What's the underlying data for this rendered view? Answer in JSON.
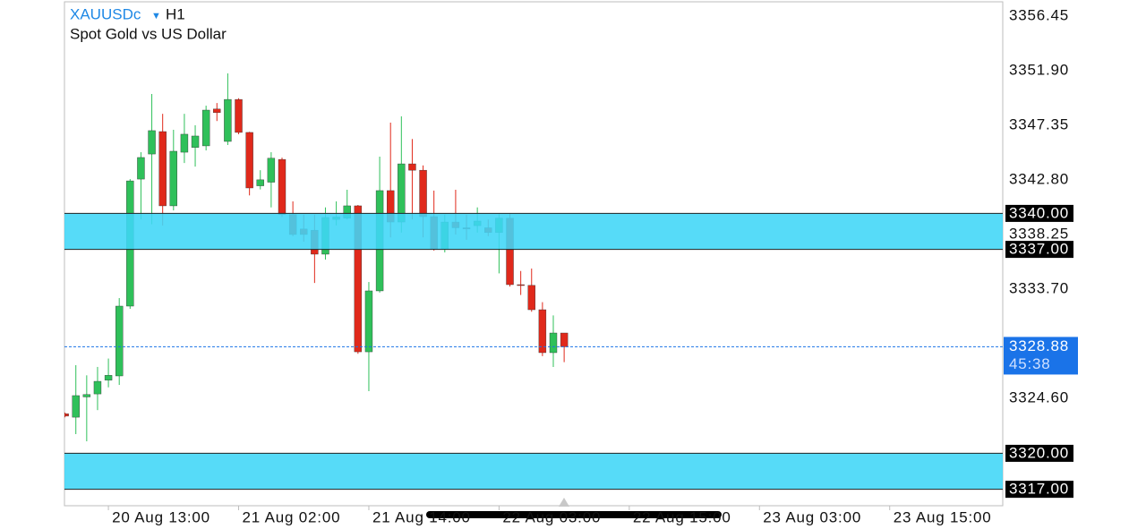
{
  "chart_data": {
    "type": "candlestick",
    "title": "XAUUSDc",
    "timeframe": "H1",
    "subtitle": "Spot Gold vs US Dollar",
    "categories": [
      null,
      null,
      null,
      null,
      "20 Aug 13:00",
      null,
      null,
      null,
      null,
      null,
      null,
      null,
      null,
      null,
      null,
      null,
      "21 Aug 02:00",
      null,
      null,
      null,
      null,
      null,
      null,
      null,
      null,
      null,
      null,
      null,
      "21 Aug 14:00",
      null,
      null,
      null,
      null,
      null,
      null,
      null,
      null,
      null,
      null,
      null,
      "22 Aug 03:00",
      null,
      null,
      null,
      null,
      null,
      null,
      null,
      null,
      null,
      null,
      null,
      "22 Aug 15:00",
      null,
      null,
      null,
      null,
      null,
      null,
      null,
      null,
      null,
      null,
      null,
      "23 Aug 03:00",
      null,
      null,
      null,
      null,
      null,
      null,
      null,
      null,
      null,
      null,
      null,
      "23 Aug 15:00",
      null,
      null,
      null,
      null,
      null,
      null,
      null,
      null,
      null,
      null
    ],
    "open": [
      3323.3,
      3323.01,
      3324.7,
      3324.95,
      3326.1,
      3326.45,
      3332.27,
      3342.86,
      3344.95,
      3346.82,
      3340.63,
      3345.1,
      3345.5,
      3345.63,
      3348.7,
      3346.0,
      3349.5,
      3346.75,
      3342.3,
      3342.6,
      3344.5,
      3339.9,
      3338.7,
      3338.6,
      3336.6,
      3339.5,
      3339.6,
      3340.63,
      3328.46,
      3333.54,
      3341.9,
      3339.28,
      3344.13,
      3343.6,
      3339.73,
      3337.04,
      3339.28,
      3338.8,
      3338.98,
      3338.8,
      3338.4,
      3339.6,
      3334.06,
      3334.0,
      3331.97,
      3328.39,
      3330.03,
      null,
      null,
      null,
      null,
      null,
      null,
      null,
      null,
      null,
      null,
      null,
      null,
      null,
      null,
      null,
      null,
      null,
      null,
      null,
      null,
      null,
      null,
      null,
      null,
      null,
      null,
      null,
      null,
      null,
      null,
      null,
      null,
      null,
      null,
      null,
      null,
      null,
      null,
      null,
      null
    ],
    "high": [
      3323.4,
      3327.35,
      3326.5,
      3327.2,
      3327.9,
      3332.94,
      3342.86,
      3345.1,
      3349.95,
      3348.3,
      3346.97,
      3348.3,
      3347.35,
      3348.98,
      3349.2,
      3351.67,
      3349.6,
      3346.8,
      3343.6,
      3345.1,
      3344.65,
      3341.0,
      3339.9,
      3339.9,
      3340.5,
      3341.0,
      3341.97,
      3340.7,
      3334.28,
      3344.73,
      3347.57,
      3348.09,
      3346.2,
      3344.0,
      3341.9,
      3339.9,
      3341.97,
      3339.9,
      3340.5,
      3339.5,
      3340.0,
      3340.0,
      3335.2,
      3335.4,
      3332.6,
      3331.5,
      3330.03,
      null,
      null,
      null,
      null,
      null,
      null,
      null,
      null,
      null,
      null,
      null,
      null,
      null,
      null,
      null,
      null,
      null,
      null,
      null,
      null,
      null,
      null,
      null,
      null,
      null,
      null,
      null,
      null,
      null,
      null,
      null,
      null,
      null,
      null,
      null,
      null,
      null,
      null,
      null,
      null
    ],
    "low": [
      3323.0,
      3321.6,
      3321.0,
      3323.6,
      3325.5,
      3325.7,
      3332.05,
      3339.5,
      3339.1,
      3338.99,
      3340.25,
      3344.2,
      3343.9,
      3345.25,
      3347.7,
      3345.7,
      3346.6,
      3341.5,
      3342.0,
      3340.5,
      3339.7,
      3338.1,
      3337.64,
      3334.2,
      3336.15,
      3339.0,
      3339.5,
      3328.3,
      3325.18,
      3333.4,
      3338.0,
      3338.4,
      3339.5,
      3338.0,
      3336.9,
      3336.75,
      3338.24,
      3337.8,
      3338.4,
      3338.1,
      3335.0,
      3333.9,
      3333.2,
      3331.8,
      3328.1,
      3327.2,
      3327.6,
      null,
      null,
      null,
      null,
      null,
      null,
      null,
      null,
      null,
      null,
      null,
      null,
      null,
      null,
      null,
      null,
      null,
      null,
      null,
      null,
      null,
      null,
      null,
      null,
      null,
      null,
      null,
      null,
      null,
      null,
      null,
      null,
      null,
      null,
      null,
      null,
      null,
      null,
      null,
      null
    ],
    "close": [
      3323.1,
      3324.81,
      3324.9,
      3326.0,
      3326.5,
      3332.27,
      3342.71,
      3344.66,
      3346.9,
      3340.63,
      3345.18,
      3346.6,
      3346.45,
      3348.61,
      3348.4,
      3349.5,
      3346.75,
      3342.12,
      3342.8,
      3344.6,
      3339.9,
      3338.24,
      3338.24,
      3336.6,
      3339.66,
      3339.7,
      3340.63,
      3328.46,
      3333.54,
      3341.9,
      3339.28,
      3344.13,
      3343.6,
      3339.73,
      3337.04,
      3339.28,
      3338.8,
      3338.7,
      3339.36,
      3338.4,
      3339.6,
      3334.06,
      3334.0,
      3331.97,
      3328.39,
      3330.03,
      3328.88,
      null,
      null,
      null,
      null,
      null,
      null,
      null,
      null,
      null,
      null,
      null,
      null,
      null,
      null,
      null,
      null,
      null,
      null,
      null,
      null,
      null,
      null,
      null,
      null,
      null,
      null,
      null,
      null,
      null,
      null,
      null,
      null,
      null,
      null,
      null,
      null,
      null,
      null,
      null,
      null
    ],
    "up_color": "#2fc05a",
    "down_color": "#e0291b",
    "ylim": [
      3315.63,
      3357.64
    ],
    "yticks": [
      3356.45,
      {
        "value": 3351.9,
        "label": "3351.90"
      },
      3347.35,
      {
        "value": 3342.8,
        "label": "3342.80"
      },
      3338.25,
      {
        "value": 3333.7,
        "label": "3333.70"
      },
      {
        "value": 3324.6,
        "label": "3324.60"
      }
    ],
    "grid": false,
    "bands": [
      {
        "low": {
          "value": 3337,
          "label": "3337.00"
        },
        "high": {
          "value": 3340,
          "label": "3340.00"
        }
      },
      {
        "low": {
          "value": 3317,
          "label": "3317.00"
        },
        "high": {
          "value": 3320,
          "label": "3320.00"
        }
      }
    ],
    "band_color": "#3fd6f7",
    "last_price": 3328.88,
    "countdown": "45:38",
    "last_price_color": "#1a73e8"
  }
}
